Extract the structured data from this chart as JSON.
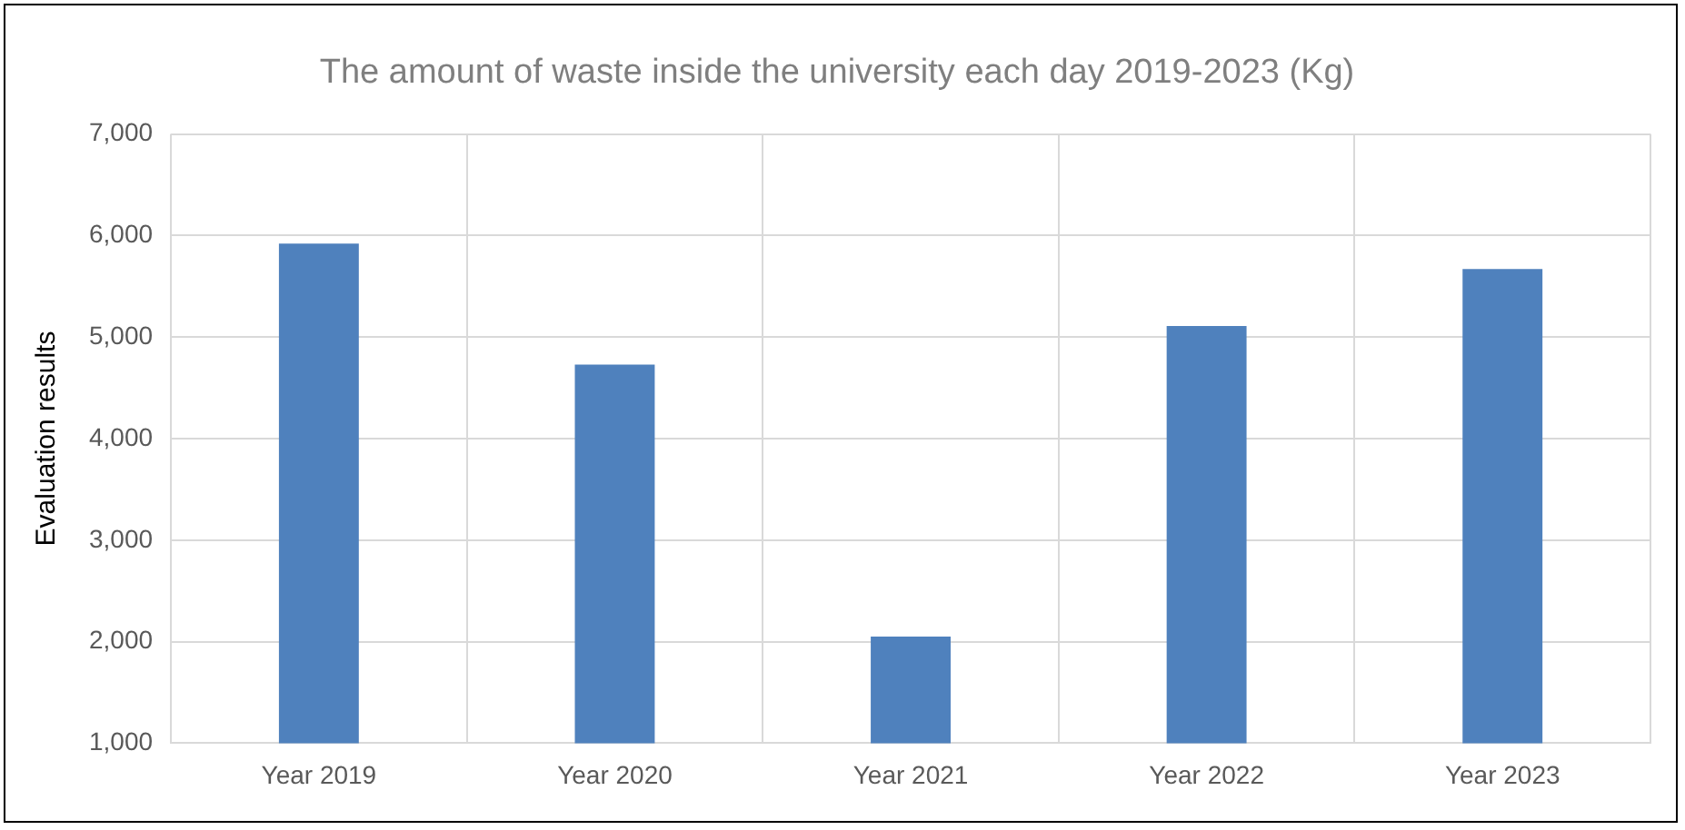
{
  "chart_data": {
    "type": "bar",
    "title": "The amount of waste inside the university each day 2019-2023 (Kg)",
    "ylabel": "Evaluation results",
    "categories": [
      "Year 2019",
      "Year 2020",
      "Year 2021",
      "Year 2022",
      "Year 2023"
    ],
    "values": [
      5920,
      4730,
      2050,
      5110,
      5670
    ],
    "color": "#4f81bd",
    "ylim": [
      1000,
      7000
    ],
    "yticks": [
      {
        "value": 1000,
        "label": "1,000"
      },
      {
        "value": 2000,
        "label": "2,000"
      },
      {
        "value": 3000,
        "label": "3,000"
      },
      {
        "value": 4000,
        "label": "4,000"
      },
      {
        "value": 5000,
        "label": "5,000"
      },
      {
        "value": 6000,
        "label": "6,000"
      },
      {
        "value": 7000,
        "label": "7,000"
      }
    ],
    "grid": true,
    "legend": false
  }
}
